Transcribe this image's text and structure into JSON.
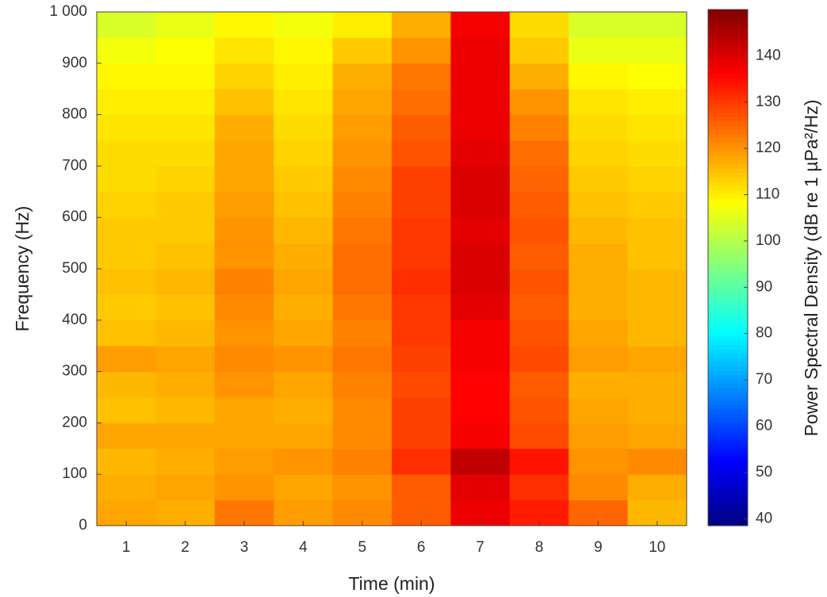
{
  "chart_data": {
    "type": "heatmap",
    "xlabel": "Time (min)",
    "ylabel": "Frequency (Hz)",
    "colorbar_label": "Power Spectral Density (dB re 1 µPa²/Hz)",
    "colormap": "jet",
    "x": [
      1,
      2,
      3,
      4,
      5,
      6,
      7,
      8,
      9,
      10
    ],
    "y_bins": [
      0,
      50,
      100,
      150,
      200,
      250,
      300,
      350,
      400,
      450,
      500,
      550,
      600,
      650,
      700,
      750,
      800,
      850,
      900,
      950,
      1000
    ],
    "z": [
      [
        118,
        117,
        116,
        118,
        115,
        116,
        119,
        115,
        114,
        115,
        114,
        114,
        113,
        112,
        112,
        111,
        110,
        109,
        107,
        104
      ],
      [
        117,
        118,
        117,
        118,
        116,
        117,
        118,
        116,
        115,
        116,
        115,
        114,
        114,
        113,
        112,
        111,
        110,
        109,
        108,
        106
      ],
      [
        123,
        120,
        119,
        118,
        118,
        120,
        121,
        120,
        121,
        122,
        120,
        120,
        119,
        118,
        118,
        117,
        115,
        113,
        111,
        109
      ],
      [
        119,
        118,
        120,
        118,
        117,
        118,
        120,
        118,
        117,
        118,
        117,
        116,
        115,
        114,
        113,
        112,
        111,
        110,
        109,
        107
      ],
      [
        121,
        120,
        122,
        121,
        121,
        122,
        123,
        122,
        123,
        124,
        124,
        123,
        122,
        121,
        120,
        119,
        118,
        117,
        114,
        110
      ],
      [
        126,
        126,
        131,
        129,
        129,
        128,
        129,
        130,
        130,
        131,
        130,
        130,
        129,
        129,
        127,
        126,
        124,
        123,
        120,
        117
      ],
      [
        138,
        139,
        143,
        137,
        136,
        136,
        137,
        137,
        139,
        140,
        140,
        139,
        140,
        140,
        139,
        138,
        138,
        138,
        138,
        137
      ],
      [
        133,
        131,
        134,
        128,
        127,
        126,
        128,
        127,
        126,
        127,
        126,
        127,
        126,
        125,
        124,
        122,
        120,
        117,
        114,
        112
      ],
      [
        125,
        121,
        120,
        119,
        118,
        117,
        119,
        118,
        117,
        117,
        117,
        116,
        115,
        114,
        113,
        112,
        111,
        109,
        106,
        104
      ],
      [
        116,
        117,
        121,
        118,
        117,
        117,
        118,
        116,
        116,
        116,
        115,
        115,
        114,
        113,
        112,
        111,
        110,
        108,
        106,
        104
      ]
    ],
    "xlim": [
      0.5,
      10.5
    ],
    "xticks": [
      1,
      2,
      3,
      4,
      5,
      6,
      7,
      8,
      9,
      10
    ],
    "ylim": [
      0,
      1000
    ],
    "yticks": [
      0,
      100,
      200,
      300,
      400,
      500,
      600,
      700,
      800,
      900,
      {
        "value": 1000,
        "label": "1 000"
      }
    ],
    "clim": [
      38.5,
      150
    ],
    "cticks": [
      40,
      50,
      60,
      70,
      80,
      90,
      100,
      110,
      120,
      130,
      140
    ]
  }
}
